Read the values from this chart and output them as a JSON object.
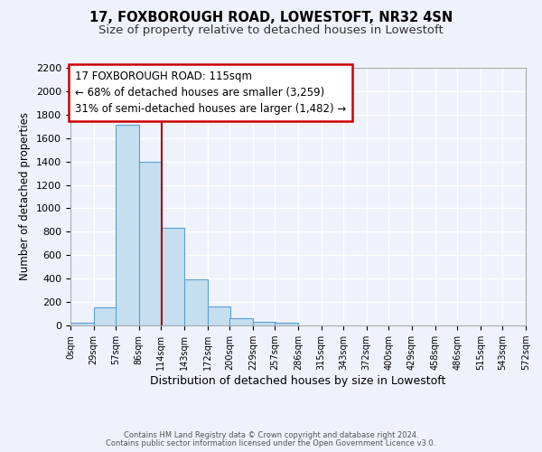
{
  "title1": "17, FOXBOROUGH ROAD, LOWESTOFT, NR32 4SN",
  "title2": "Size of property relative to detached houses in Lowestoft",
  "xlabel": "Distribution of detached houses by size in Lowestoft",
  "ylabel": "Number of detached properties",
  "bar_left_edges": [
    0,
    29,
    57,
    86,
    114,
    143,
    172,
    200,
    229,
    257,
    286,
    315,
    343,
    372,
    400,
    429,
    458,
    486,
    515,
    543
  ],
  "bar_heights": [
    20,
    155,
    1710,
    1400,
    830,
    390,
    165,
    65,
    30,
    25,
    0,
    0,
    0,
    0,
    0,
    0,
    0,
    0,
    0,
    0
  ],
  "bin_width": 29,
  "bar_color": "#c5dff0",
  "bar_edge_color": "#5a9fd4",
  "property_size": 115,
  "vline_color": "#aa0000",
  "annotation_text": "17 FOXBOROUGH ROAD: 115sqm\n← 68% of detached houses are smaller (3,259)\n31% of semi-detached houses are larger (1,482) →",
  "annotation_box_color": "#ffffff",
  "annotation_border_color": "#cc0000",
  "xlim": [
    0,
    572
  ],
  "ylim": [
    0,
    2200
  ],
  "xtick_labels": [
    "0sqm",
    "29sqm",
    "57sqm",
    "86sqm",
    "114sqm",
    "143sqm",
    "172sqm",
    "200sqm",
    "229sqm",
    "257sqm",
    "286sqm",
    "315sqm",
    "343sqm",
    "372sqm",
    "400sqm",
    "429sqm",
    "458sqm",
    "486sqm",
    "515sqm",
    "543sqm",
    "572sqm"
  ],
  "xtick_positions": [
    0,
    29,
    57,
    86,
    114,
    143,
    172,
    200,
    229,
    257,
    286,
    315,
    343,
    372,
    400,
    429,
    458,
    486,
    515,
    543,
    572
  ],
  "ytick_positions": [
    0,
    200,
    400,
    600,
    800,
    1000,
    1200,
    1400,
    1600,
    1800,
    2000,
    2200
  ],
  "footer1": "Contains HM Land Registry data © Crown copyright and database right 2024.",
  "footer2": "Contains public sector information licensed under the Open Government Licence v3.0.",
  "background_color": "#eef2fb",
  "grid_color": "#ffffff",
  "title1_fontsize": 10.5,
  "title2_fontsize": 9.5,
  "annotation_fontsize": 8.5
}
